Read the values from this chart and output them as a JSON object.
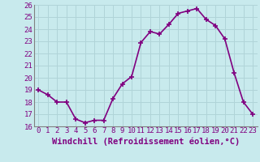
{
  "x": [
    0,
    1,
    2,
    3,
    4,
    5,
    6,
    7,
    8,
    9,
    10,
    11,
    12,
    13,
    14,
    15,
    16,
    17,
    18,
    19,
    20,
    21,
    22,
    23
  ],
  "y": [
    19.0,
    18.6,
    18.0,
    18.0,
    16.6,
    16.3,
    16.5,
    16.5,
    18.3,
    19.5,
    20.1,
    22.9,
    23.8,
    23.6,
    24.4,
    25.3,
    25.5,
    25.7,
    24.8,
    24.3,
    23.2,
    20.4,
    18.0,
    17.0
  ],
  "xlim": [
    -0.5,
    23.5
  ],
  "ylim": [
    16,
    26
  ],
  "yticks": [
    16,
    17,
    18,
    19,
    20,
    21,
    22,
    23,
    24,
    25,
    26
  ],
  "xticks": [
    0,
    1,
    2,
    3,
    4,
    5,
    6,
    7,
    8,
    9,
    10,
    11,
    12,
    13,
    14,
    15,
    16,
    17,
    18,
    19,
    20,
    21,
    22,
    23
  ],
  "xlabel": "Windchill (Refroidissement éolien,°C)",
  "line_color": "#800080",
  "marker": "+",
  "marker_size": 5,
  "marker_lw": 1.2,
  "line_width": 1.2,
  "bg_color": "#c8eaed",
  "grid_color": "#b0d4d8",
  "axis_color": "#808080",
  "tick_color": "#800080",
  "tick_label_fontsize": 6.5,
  "xlabel_fontsize": 7.5
}
